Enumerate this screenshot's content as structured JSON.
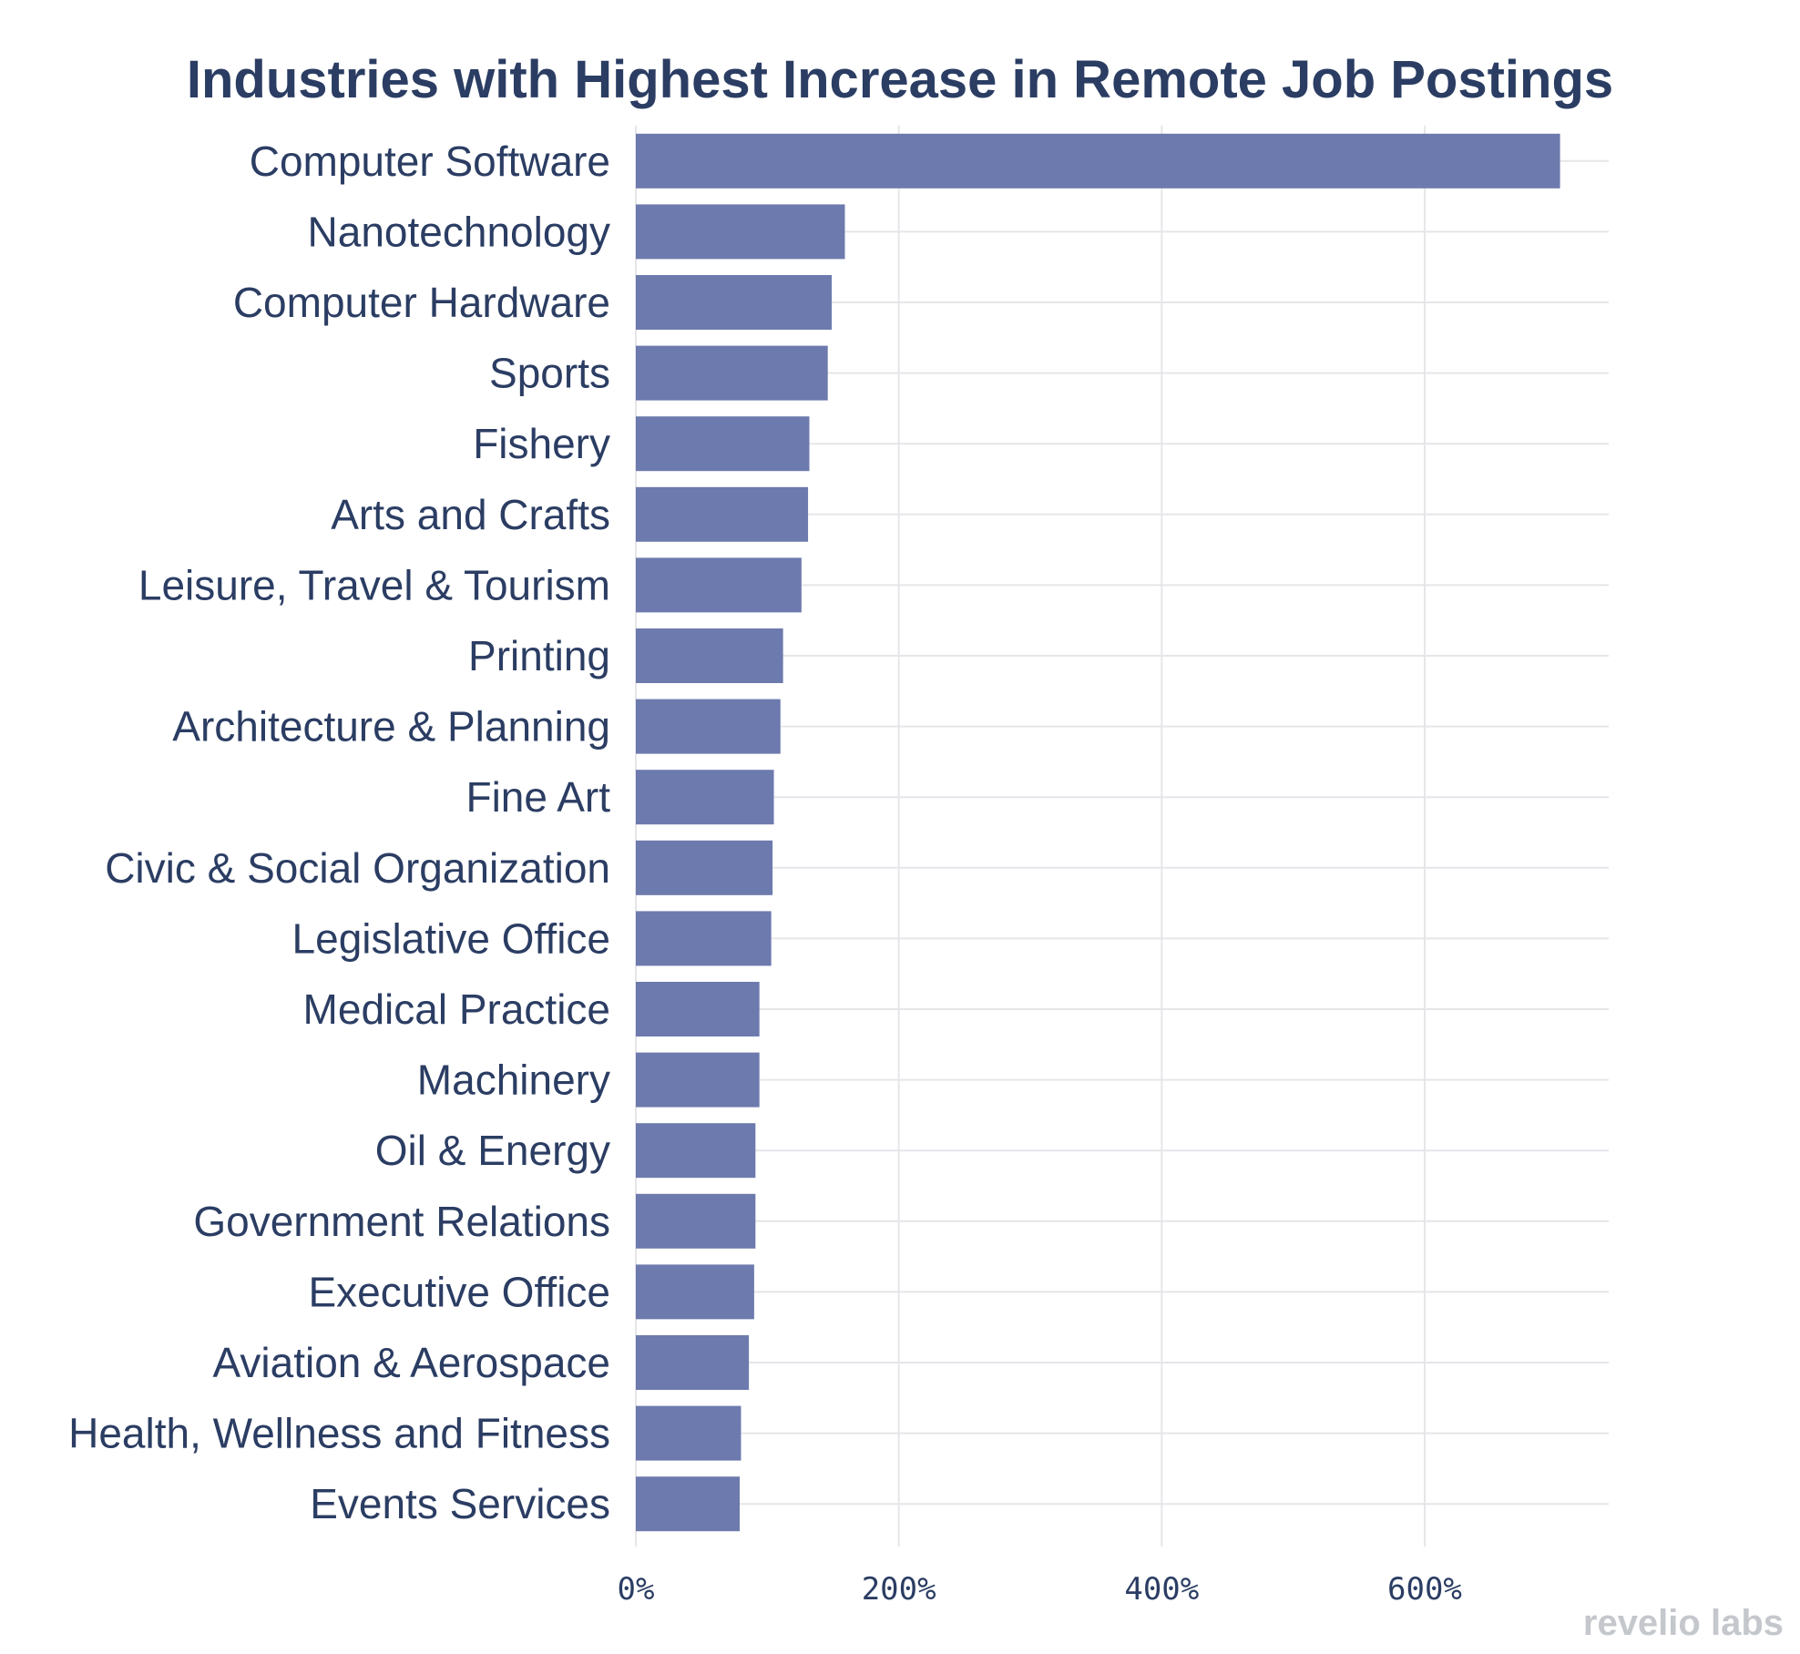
{
  "chart_data": {
    "type": "bar",
    "orientation": "horizontal",
    "title": "Industries with Highest Increase in Remote Job Postings",
    "xlabel": "",
    "ylabel": "",
    "xlim": [
      0,
      740
    ],
    "x_ticks": [
      0,
      200,
      400,
      600
    ],
    "x_tick_labels": [
      "0%",
      "200%",
      "400%",
      "600%"
    ],
    "grid": true,
    "legend": "none",
    "bar_color": "#6d7aad",
    "categories": [
      "Computer Software",
      "Nanotechnology",
      "Computer Hardware",
      "Sports",
      "Fishery",
      "Arts and Crafts",
      "Leisure, Travel & Tourism",
      "Printing",
      "Architecture & Planning",
      "Fine Art",
      "Civic & Social Organization",
      "Legislative Office",
      "Medical Practice",
      "Machinery",
      "Oil & Energy",
      "Government Relations",
      "Executive Office",
      "Aviation & Aerospace",
      "Health, Wellness and Fitness",
      "Events Services"
    ],
    "values": [
      703,
      159,
      149,
      146,
      132,
      131,
      126,
      112,
      110,
      105,
      104,
      103,
      94,
      94,
      91,
      91,
      90,
      86,
      80,
      79
    ]
  },
  "branding": {
    "text": "revelio labs"
  }
}
